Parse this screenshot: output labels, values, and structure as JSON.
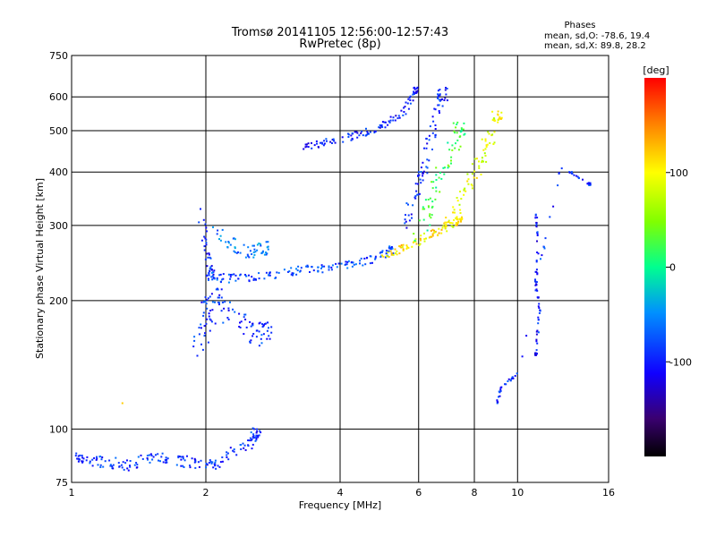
{
  "chart_data": {
    "type": "scatter",
    "title": "Tromsø 20141105 12:56:00-12:57:43",
    "subtitle": "RwPretec (8p)",
    "xlabel": "Frequency [MHz]",
    "ylabel": "Stationary phase Virtual Height [km]",
    "x_scale": "log",
    "y_scale": "log",
    "xlim": [
      1,
      16
    ],
    "ylim": [
      75,
      750
    ],
    "x_ticks": [
      1,
      2,
      4,
      6,
      8,
      10,
      16
    ],
    "x_tick_labels": [
      "1",
      "2",
      "4",
      "6",
      "8",
      "10",
      "16"
    ],
    "y_ticks": [
      75,
      100,
      200,
      300,
      400,
      500,
      600,
      750
    ],
    "y_tick_labels": [
      "75",
      "100",
      "200",
      "300",
      "400",
      "500",
      "600",
      "750"
    ],
    "grid": true,
    "phase_stats": {
      "heading": "Phases",
      "line_o": "mean, sd,O: -78.6, 19.4",
      "line_x": "mean, sd,X: 89.8, 28.2"
    },
    "colorbar": {
      "label": "[deg]",
      "range": [
        -200,
        200
      ],
      "ticks": [
        100,
        0,
        -100
      ],
      "tick_labels": [
        "100",
        "0",
        "-100"
      ]
    },
    "traces": [
      {
        "x": [
          1.02,
          1.05,
          1.15,
          1.25,
          1.35,
          1.5,
          1.62,
          1.8,
          1.95,
          2.1,
          2.3,
          2.5,
          2.6
        ],
        "y": [
          85,
          86,
          84,
          83,
          82,
          86,
          85,
          84,
          83,
          82,
          88,
          92,
          98
        ],
        "phase": -90,
        "spread": 0.04
      },
      {
        "x": [
          1.3
        ],
        "y": [
          115
        ],
        "phase": 110,
        "spread": 0.0
      },
      {
        "x": [
          1.9,
          2.0,
          2.05,
          2.1,
          2.2,
          2.4,
          2.6,
          2.7
        ],
        "y": [
          150,
          175,
          195,
          210,
          190,
          175,
          165,
          170
        ],
        "phase": -90,
        "spread": 0.08
      },
      {
        "x": [
          1.95,
          2.0,
          2.05
        ],
        "y": [
          320,
          260,
          230
        ],
        "phase": -95,
        "spread": 0.04
      },
      {
        "x": [
          2.05,
          2.2,
          2.4,
          2.7,
          3.0,
          3.3,
          3.6,
          4.0,
          4.4,
          4.8,
          5.2
        ],
        "y": [
          228,
          225,
          226,
          228,
          232,
          236,
          238,
          240,
          245,
          252,
          262
        ],
        "phase": -80,
        "spread": 0.03
      },
      {
        "x": [
          2.1,
          2.3,
          2.5,
          2.7
        ],
        "y": [
          290,
          270,
          260,
          265
        ],
        "phase": -60,
        "spread": 0.05
      },
      {
        "x": [
          5.0,
          5.4,
          5.8,
          6.2,
          6.6,
          7.0,
          7.4
        ],
        "y": [
          255,
          262,
          270,
          280,
          290,
          300,
          310
        ],
        "phase": 110,
        "spread": 0.03
      },
      {
        "x": [
          3.3,
          3.6,
          4.0,
          4.4,
          4.8,
          5.2,
          5.6,
          5.9
        ],
        "y": [
          458,
          465,
          478,
          490,
          505,
          525,
          560,
          620
        ],
        "phase": -100,
        "spread": 0.025
      },
      {
        "x": [
          5.6,
          5.9,
          6.1,
          6.3,
          6.5,
          6.8
        ],
        "y": [
          300,
          350,
          400,
          450,
          520,
          610
        ],
        "phase": -95,
        "spread": 0.05
      },
      {
        "x": [
          6.0,
          6.3,
          6.6,
          7.0,
          7.4
        ],
        "y": [
          280,
          330,
          380,
          430,
          500
        ],
        "phase": 20,
        "spread": 0.06
      },
      {
        "x": [
          7.0,
          7.4,
          7.8,
          8.2,
          8.6,
          9.0
        ],
        "y": [
          300,
          340,
          380,
          420,
          470,
          540
        ],
        "phase": 90,
        "spread": 0.05
      },
      {
        "x": [
          11.0,
          11.1,
          11.0,
          11.2,
          11.0
        ],
        "y": [
          320,
          270,
          220,
          190,
          150
        ],
        "phase": -100,
        "spread": 0.01
      },
      {
        "x": [
          9.0,
          9.2,
          10.0,
          12.5,
          14.5
        ],
        "y": [
          115,
          125,
          135,
          410,
          375
        ],
        "phase": -90,
        "spread": 0.01
      }
    ]
  }
}
